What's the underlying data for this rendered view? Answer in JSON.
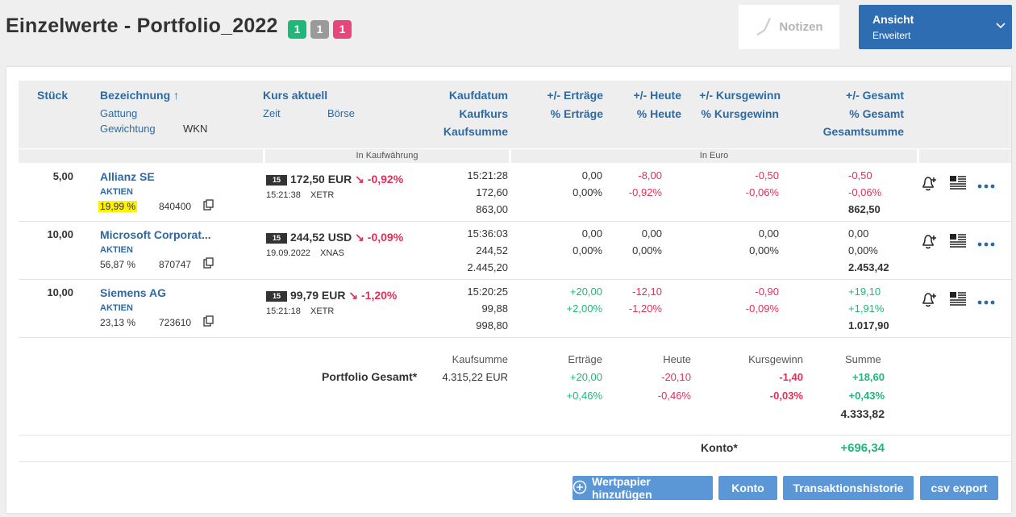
{
  "page": {
    "title": "Einzelwerte - Portfolio_2022",
    "badges": [
      {
        "label": "1",
        "color": "#1fb87a"
      },
      {
        "label": "1",
        "color": "#9a9a9a"
      },
      {
        "label": "1",
        "color": "#e8457a"
      }
    ],
    "notizen_label": "Notizen",
    "ansicht": {
      "title": "Ansicht",
      "value": "Erweitert"
    }
  },
  "header": {
    "stueck": "Stück",
    "bezeichnung": "Bezeichnung",
    "gattung": "Gattung",
    "gewichtung": "Gewichtung",
    "wkn": "WKN",
    "kurs_aktuell": "Kurs aktuell",
    "zeit": "Zeit",
    "boerse": "Börse",
    "kaufdatum": "Kaufdatum",
    "kaufkurs": "Kaufkurs",
    "kaufsumme": "Kaufsumme",
    "ertraege": "+/- Erträge",
    "pct_ertraege": "% Erträge",
    "heute": "+/- Heute",
    "pct_heute": "% Heute",
    "kursgewinn": "+/- Kursgewinn",
    "pct_kursgewinn": "% Kursgewinn",
    "gesamt": "+/- Gesamt",
    "pct_gesamt": "% Gesamt",
    "gesamtsumme": "Gesamtsumme",
    "sub_kaufwaehrung": "In Kaufwährung",
    "sub_euro": "In Euro"
  },
  "rows": [
    {
      "stueck": "5,00",
      "name": "Allianz SE",
      "gattung": "AKTIEN",
      "gewichtung": "19,99 %",
      "wkn": "840400",
      "tag": "15",
      "kurs": "172,50 EUR",
      "kurs_change": "-0,92%",
      "zeit": "15:21:38",
      "boerse": "XETR",
      "kaufdatum": "15:21:28",
      "kaufkurs": "172,60",
      "kaufsumme": "863,00",
      "ertraege": "0,00",
      "pct_ertraege": "0,00%",
      "heute": "-8,00",
      "pct_heute": "-0,92%",
      "kursgewinn": "-0,50",
      "pct_kursgewinn": "-0,06%",
      "gesamt": "-0,50",
      "pct_gesamt": "-0,06%",
      "gesamtsumme": "862,50"
    },
    {
      "stueck": "10,00",
      "name": "Microsoft Corporat...",
      "gattung": "AKTIEN",
      "gewichtung": "56,87 %",
      "wkn": "870747",
      "tag": "15",
      "kurs": "244,52 USD",
      "kurs_change": "-0,09%",
      "zeit": "19.09.2022",
      "boerse": "XNAS",
      "kaufdatum": "15:36:03",
      "kaufkurs": "244,52",
      "kaufsumme": "2.445,20",
      "ertraege": "0,00",
      "pct_ertraege": "0,00%",
      "heute": "0,00",
      "pct_heute": "0,00%",
      "kursgewinn": "0,00",
      "pct_kursgewinn": "0,00%",
      "gesamt": "0,00",
      "pct_gesamt": "0,00%",
      "gesamtsumme": "2.453,42"
    },
    {
      "stueck": "10,00",
      "name": "Siemens AG",
      "gattung": "AKTIEN",
      "gewichtung": "23,13 %",
      "wkn": "723610",
      "tag": "15",
      "kurs": "99,79 EUR",
      "kurs_change": "-1,20%",
      "zeit": "15:21:18",
      "boerse": "XETR",
      "kaufdatum": "15:20:25",
      "kaufkurs": "99,88",
      "kaufsumme": "998,80",
      "ertraege": "+20,00",
      "pct_ertraege": "+2,00%",
      "heute": "-12,10",
      "pct_heute": "-1,20%",
      "kursgewinn": "-0,90",
      "pct_kursgewinn": "-0,09%",
      "gesamt": "+19,10",
      "pct_gesamt": "+1,91%",
      "gesamtsumme": "1.017,90"
    }
  ],
  "summary": {
    "label": "Portfolio Gesamt*",
    "kaufsumme_label": "Kaufsumme",
    "kaufsumme": "4.315,22 EUR",
    "ertraege_label": "Erträge",
    "ertraege": "+20,00",
    "pct_ertraege": "+0,46%",
    "heute_label": "Heute",
    "heute": "-20,10",
    "pct_heute": "-0,46%",
    "kursgewinn_label": "Kursgewinn",
    "kursgewinn": "-1,40",
    "pct_kursgewinn": "-0,03%",
    "summe_label": "Summe",
    "summe": "+18,60",
    "pct_summe": "+0,43%",
    "gesamtsumme": "4.333,82"
  },
  "konto": {
    "label": "Konto*",
    "value": "+696,34"
  },
  "buttons": {
    "add": "Wertpapier hinzufügen",
    "konto": "Konto",
    "historie": "Transaktionshistorie",
    "csv": "csv export"
  },
  "colors": {
    "accent": "#2d6aa3",
    "button": "#5b96d6",
    "red": "#e0305a",
    "green": "#1fb87a"
  }
}
